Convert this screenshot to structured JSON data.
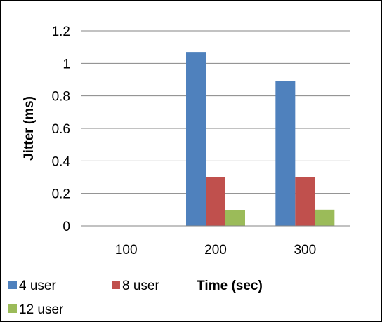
{
  "chart_data": {
    "type": "bar",
    "categories": [
      "100",
      "200",
      "300"
    ],
    "series": [
      {
        "name": "4 user",
        "color": "#4F81BD",
        "values": [
          0,
          1.07,
          0.89
        ]
      },
      {
        "name": "8 user",
        "color": "#C0504D",
        "values": [
          0,
          0.3,
          0.3
        ]
      },
      {
        "name": "12 user",
        "color": "#9BBB59",
        "values": [
          0,
          0.095,
          0.1
        ]
      }
    ],
    "title": "",
    "xlabel": "Time (sec)",
    "ylabel": "Jitter (ms)",
    "ylim": [
      0,
      1.2
    ],
    "yticks": [
      "0",
      "0.2",
      "0.4",
      "0.6",
      "0.8",
      "1",
      "1.2"
    ],
    "grid": "horizontal",
    "legend_position": "bottom-left"
  }
}
